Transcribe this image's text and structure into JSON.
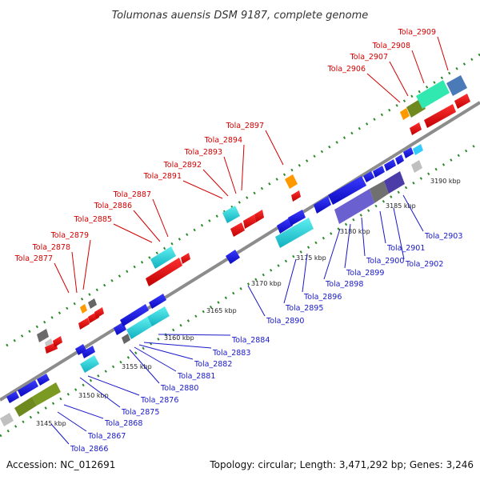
{
  "title": "Tolumonas auensis DSM 9187, complete genome",
  "footer": {
    "accession": "Accession: NC_012691",
    "summary": "Topology: circular; Length: 3,471,292 bp; Genes: 3,246"
  },
  "colors": {
    "top_label": "#d40000",
    "bottom_label": "#1818c8",
    "backbone": "#8c8c8c",
    "forward_gene": "#e00000",
    "reverse_gene": "#1a1ae0"
  },
  "ticks": [
    "3145 kbp",
    "3150 kbp",
    "3155 kbp",
    "3160 kbp",
    "3165 kbp",
    "3170 kbp",
    "3175 kbp",
    "3180 kbp",
    "3185 kbp",
    "3190 kbp"
  ],
  "top_labels": [
    "Tola_2877",
    "Tola_2878",
    "Tola_2879",
    "Tola_2885",
    "Tola_2886",
    "Tola_2887",
    "Tola_2891",
    "Tola_2892",
    "Tola_2893",
    "Tola_2894",
    "Tola_2897",
    "Tola_2906",
    "Tola_2907",
    "Tola_2908",
    "Tola_2909"
  ],
  "bottom_labels": [
    "Tola_2866",
    "Tola_2867",
    "Tola_2868",
    "Tola_2875",
    "Tola_2876",
    "Tola_2880",
    "Tola_2881",
    "Tola_2882",
    "Tola_2883",
    "Tola_2884",
    "Tola_2890",
    "Tola_2895",
    "Tola_2896",
    "Tola_2898",
    "Tola_2899",
    "Tola_2900",
    "Tola_2901",
    "Tola_2902",
    "Tola_2903"
  ]
}
